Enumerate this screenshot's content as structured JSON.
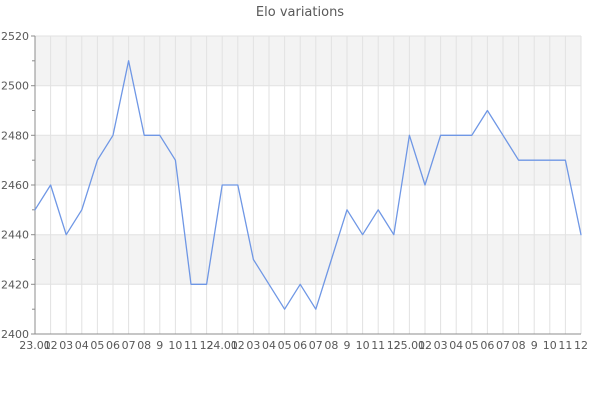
{
  "chart_data": {
    "type": "line",
    "title": "Elo variations",
    "x_labels": [
      "23.01",
      "02",
      "03",
      "04",
      "05",
      "06",
      "07",
      "08",
      "9",
      "10",
      "11",
      "12",
      "24.01",
      "02",
      "03",
      "04",
      "05",
      "06",
      "07",
      "08",
      "9",
      "10",
      "11",
      "12",
      "25.01",
      "02",
      "03",
      "04",
      "05",
      "06",
      "07",
      "08",
      "9",
      "10",
      "11",
      "12"
    ],
    "values": [
      2450,
      2460,
      2440,
      2450,
      2470,
      2480,
      2510,
      2480,
      2480,
      2470,
      2420,
      2420,
      2460,
      2460,
      2430,
      2420,
      2410,
      2420,
      2410,
      2430,
      2450,
      2440,
      2450,
      2440,
      2480,
      2460,
      2480,
      2480,
      2480,
      2490,
      2480,
      2470,
      2470,
      2470,
      2470,
      2440
    ],
    "ylim": [
      2400,
      2520
    ],
    "ytick_major_step": 20,
    "ytick_minor_step": 10,
    "ytick_labels": [
      "2400",
      "2420",
      "2440",
      "2460",
      "2480",
      "2500",
      "2520"
    ],
    "grid": true,
    "legend": "none",
    "series_name": "Elo",
    "colors": {
      "line": "#6f97e5",
      "band": "#f3f3f3",
      "gridline": "#e2e2e2",
      "axis": "#8c8c8c",
      "text": "#595959"
    }
  }
}
